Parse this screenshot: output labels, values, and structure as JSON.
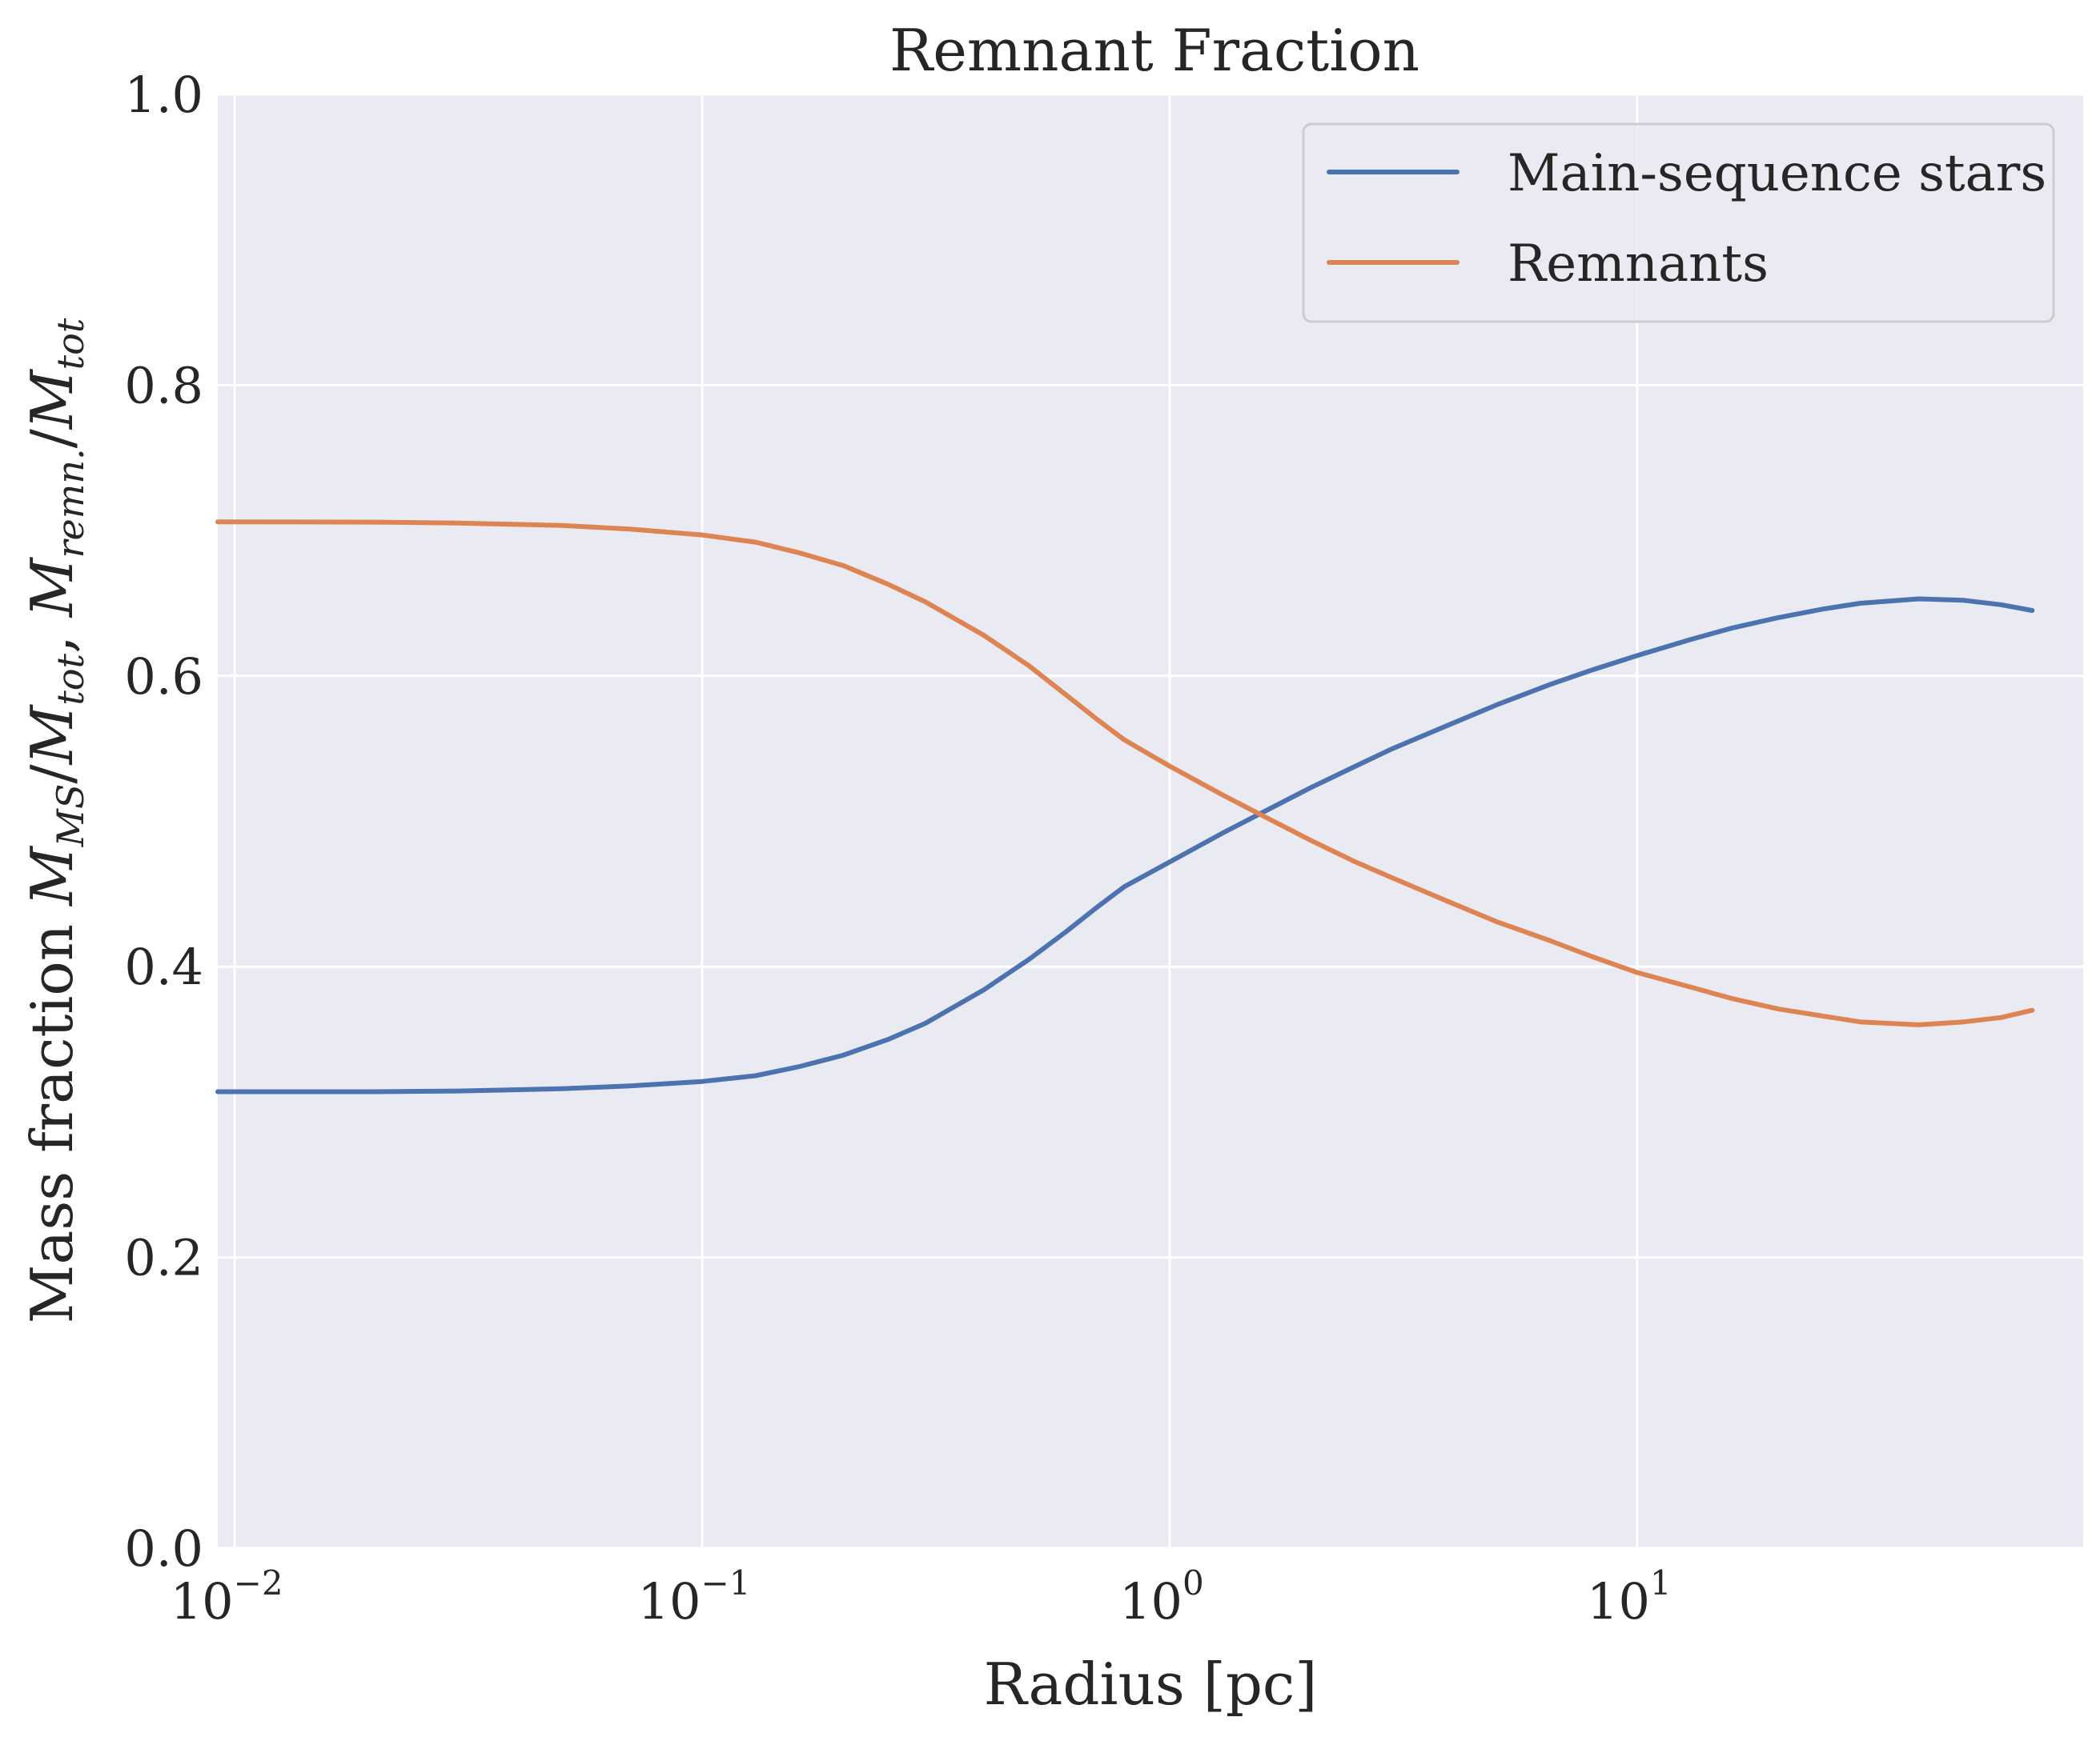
{
  "chart_data": {
    "type": "line",
    "title": "Remnant Fraction",
    "xlabel": "Radius [pc]",
    "ylabel": "Mass fraction M_MS/M_tot, M_remn./M_tot",
    "ylabel_parts": {
      "prefix": "Mass fraction ",
      "m1": "M",
      "s1": "MS",
      "slash1": "/",
      "m2": "M",
      "s2": "tot",
      "comma": ", ",
      "m3": "M",
      "s3": "remn.",
      "slash2": "/",
      "m4": "M",
      "s4": "tot"
    },
    "x_scale": "log",
    "xlim": [
      0.0092,
      90
    ],
    "ylim": [
      0.0,
      1.0
    ],
    "grid": true,
    "legend_position": "top-right",
    "x_ticks": [
      {
        "value": 0.01,
        "base": "10",
        "exp": "−2"
      },
      {
        "value": 0.1,
        "base": "10",
        "exp": "−1"
      },
      {
        "value": 1,
        "base": "10",
        "exp": "0"
      },
      {
        "value": 10,
        "base": "10",
        "exp": "1"
      }
    ],
    "y_ticks": [
      {
        "value": 0.0,
        "label": "0.0"
      },
      {
        "value": 0.2,
        "label": "0.2"
      },
      {
        "value": 0.4,
        "label": "0.4"
      },
      {
        "value": 0.6,
        "label": "0.6"
      },
      {
        "value": 0.8,
        "label": "0.8"
      },
      {
        "value": 1.0,
        "label": "1.0"
      }
    ],
    "series": [
      {
        "name": "Main-sequence stars",
        "color": "#4c72b0",
        "points": [
          [
            0.0092,
            0.314
          ],
          [
            0.02,
            0.314
          ],
          [
            0.03,
            0.3145
          ],
          [
            0.05,
            0.316
          ],
          [
            0.07,
            0.318
          ],
          [
            0.1,
            0.321
          ],
          [
            0.13,
            0.325
          ],
          [
            0.16,
            0.331
          ],
          [
            0.2,
            0.339
          ],
          [
            0.25,
            0.35
          ],
          [
            0.3,
            0.361
          ],
          [
            0.4,
            0.384
          ],
          [
            0.5,
            0.405
          ],
          [
            0.6,
            0.424
          ],
          [
            0.7,
            0.441
          ],
          [
            0.8,
            0.455
          ],
          [
            1.0,
            0.472
          ],
          [
            1.3,
            0.492
          ],
          [
            1.6,
            0.507
          ],
          [
            2.0,
            0.523
          ],
          [
            2.5,
            0.538
          ],
          [
            3.0,
            0.55
          ],
          [
            4.0,
            0.567
          ],
          [
            5.0,
            0.58
          ],
          [
            6.5,
            0.594
          ],
          [
            8.0,
            0.604
          ],
          [
            10,
            0.614
          ],
          [
            13,
            0.625
          ],
          [
            16,
            0.633
          ],
          [
            20,
            0.64
          ],
          [
            25,
            0.646
          ],
          [
            30,
            0.65
          ],
          [
            40,
            0.653
          ],
          [
            50,
            0.652
          ],
          [
            60,
            0.649
          ],
          [
            70,
            0.645
          ]
        ]
      },
      {
        "name": "Remnants",
        "color": "#dd8452",
        "points": [
          [
            0.0092,
            0.706
          ],
          [
            0.02,
            0.7058
          ],
          [
            0.03,
            0.7052
          ],
          [
            0.05,
            0.7035
          ],
          [
            0.07,
            0.701
          ],
          [
            0.1,
            0.697
          ],
          [
            0.13,
            0.692
          ],
          [
            0.16,
            0.685
          ],
          [
            0.2,
            0.676
          ],
          [
            0.25,
            0.663
          ],
          [
            0.3,
            0.651
          ],
          [
            0.4,
            0.628
          ],
          [
            0.5,
            0.607
          ],
          [
            0.6,
            0.587
          ],
          [
            0.7,
            0.57
          ],
          [
            0.8,
            0.556
          ],
          [
            1.0,
            0.538
          ],
          [
            1.3,
            0.518
          ],
          [
            1.6,
            0.503
          ],
          [
            2.0,
            0.487
          ],
          [
            2.5,
            0.472
          ],
          [
            3.0,
            0.461
          ],
          [
            4.0,
            0.444
          ],
          [
            5.0,
            0.431
          ],
          [
            6.5,
            0.418
          ],
          [
            8.0,
            0.407
          ],
          [
            10,
            0.396
          ],
          [
            13,
            0.386
          ],
          [
            16,
            0.378
          ],
          [
            20,
            0.371
          ],
          [
            25,
            0.366
          ],
          [
            30,
            0.362
          ],
          [
            40,
            0.36
          ],
          [
            50,
            0.362
          ],
          [
            60,
            0.365
          ],
          [
            70,
            0.37
          ]
        ]
      }
    ]
  }
}
